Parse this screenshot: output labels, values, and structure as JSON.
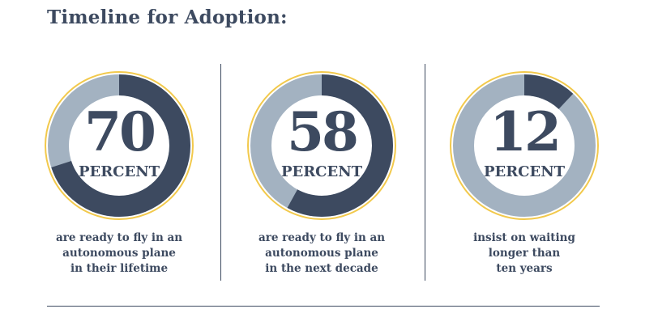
{
  "title": "Timeline for Adoption:",
  "colors": {
    "text": "#3d4a60",
    "filled": "#3d4a60",
    "remaining": "#a3b2c1",
    "outline": "#f2c94c"
  },
  "chart_data": {
    "type": "pie",
    "unit_label": "PERCENT",
    "items": [
      {
        "value": 70,
        "label": "70",
        "caption": [
          "are ready to fly in an",
          "autonomous plane",
          "in their lifetime"
        ]
      },
      {
        "value": 58,
        "label": "58",
        "caption": [
          "are ready to fly in an",
          "autonomous plane",
          "in the next decade"
        ]
      },
      {
        "value": 12,
        "label": "12",
        "caption": [
          "insist on waiting",
          "longer than",
          "ten years"
        ]
      }
    ]
  }
}
